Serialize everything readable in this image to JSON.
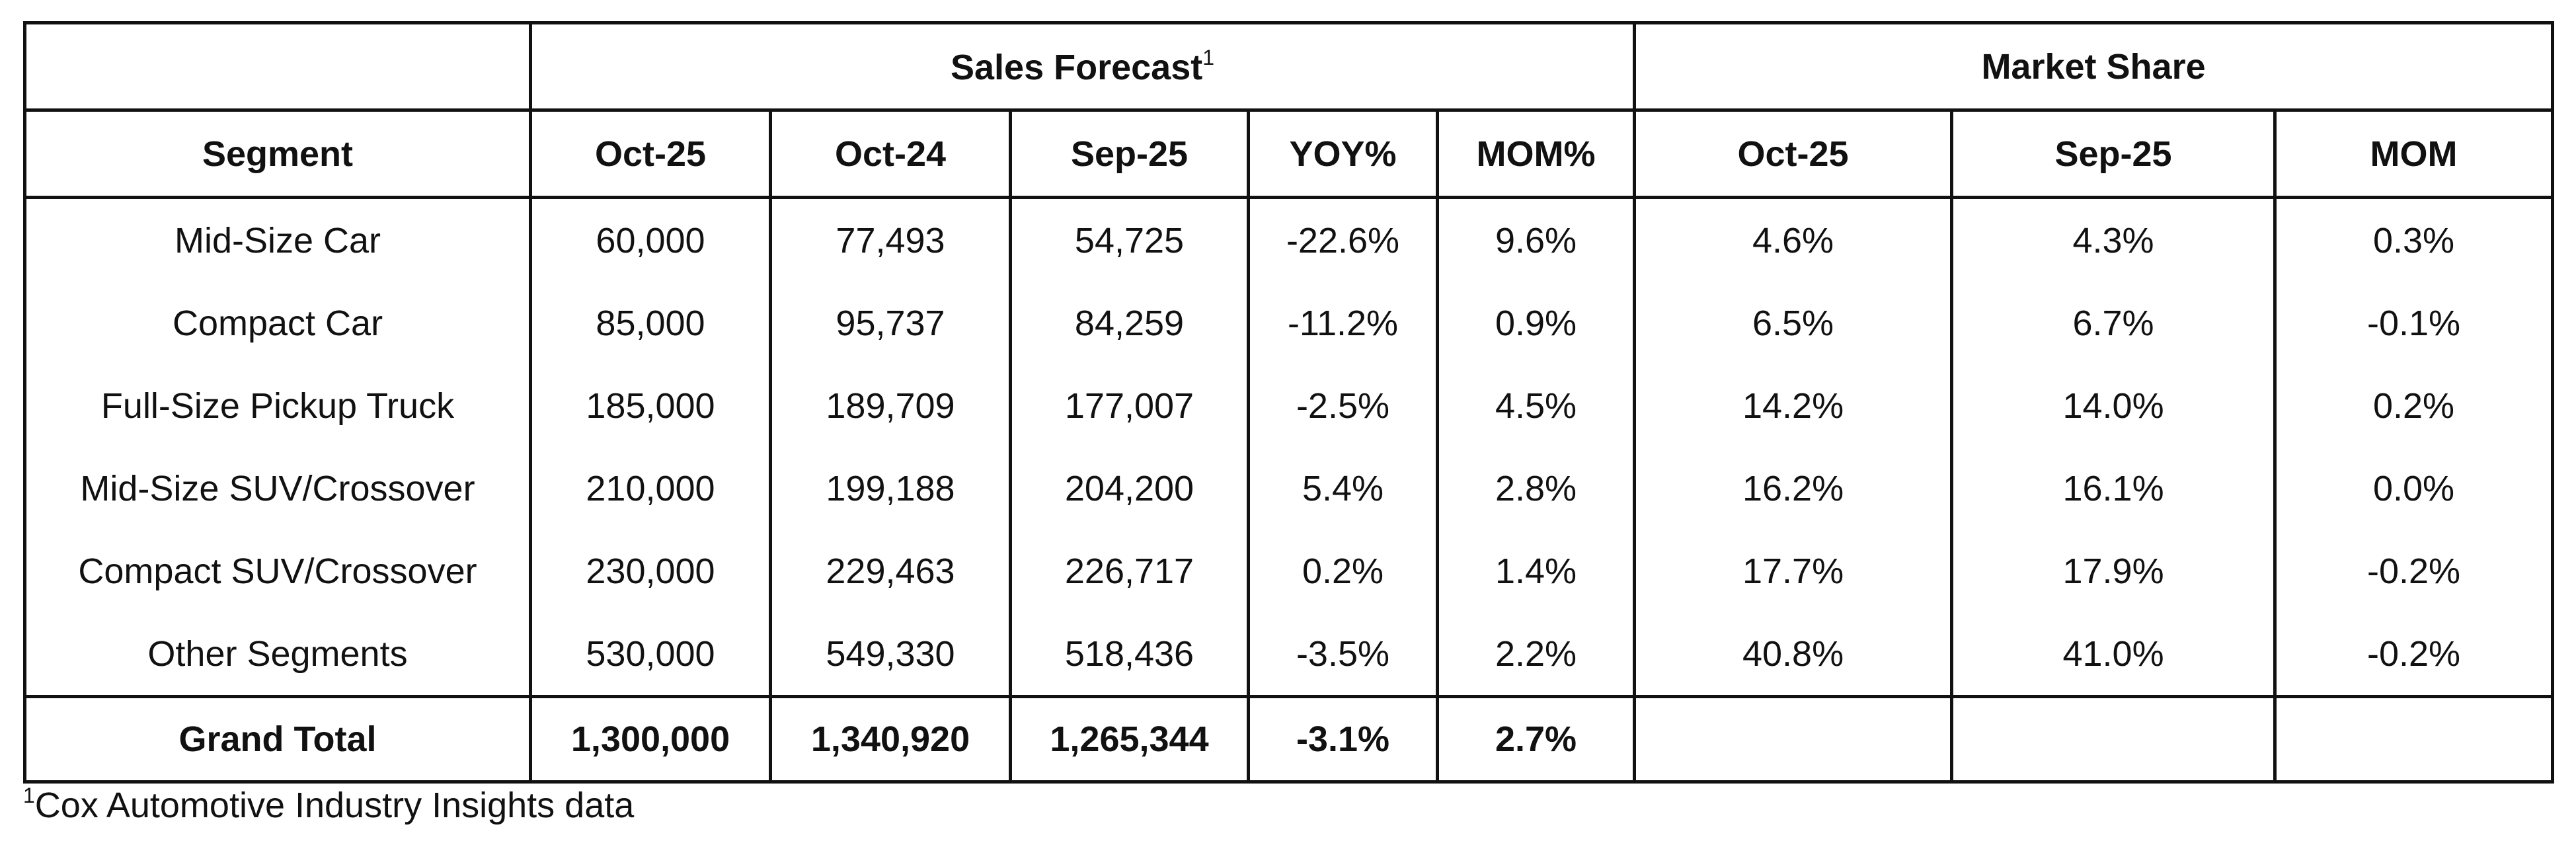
{
  "table": {
    "groups": [
      {
        "label": "Sales Forecast",
        "note": "1"
      },
      {
        "label": "Market Share"
      }
    ],
    "columns": [
      "Segment",
      "Oct-25",
      "Oct-24",
      "Sep-25",
      "YOY%",
      "MOM%",
      "Oct-25",
      "Sep-25",
      "MOM"
    ],
    "rows": [
      [
        "Mid-Size Car",
        "60,000",
        "77,493",
        "54,725",
        "-22.6%",
        "9.6%",
        "4.6%",
        "4.3%",
        "0.3%"
      ],
      [
        "Compact Car",
        "85,000",
        "95,737",
        "84,259",
        "-11.2%",
        "0.9%",
        "6.5%",
        "6.7%",
        "-0.1%"
      ],
      [
        "Full-Size Pickup Truck",
        "185,000",
        "189,709",
        "177,007",
        "-2.5%",
        "4.5%",
        "14.2%",
        "14.0%",
        "0.2%"
      ],
      [
        "Mid-Size SUV/Crossover",
        "210,000",
        "199,188",
        "204,200",
        "5.4%",
        "2.8%",
        "16.2%",
        "16.1%",
        "0.0%"
      ],
      [
        "Compact SUV/Crossover",
        "230,000",
        "229,463",
        "226,717",
        "0.2%",
        "1.4%",
        "17.7%",
        "17.9%",
        "-0.2%"
      ],
      [
        "Other Segments",
        "530,000",
        "549,330",
        "518,436",
        "-3.5%",
        "2.2%",
        "40.8%",
        "41.0%",
        "-0.2%"
      ]
    ],
    "total": [
      "Grand Total",
      "1,300,000",
      "1,340,920",
      "1,265,344",
      "-3.1%",
      "2.7%"
    ]
  },
  "footnote": {
    "mark": "1",
    "text": "Cox Automotive Industry Insights data"
  }
}
